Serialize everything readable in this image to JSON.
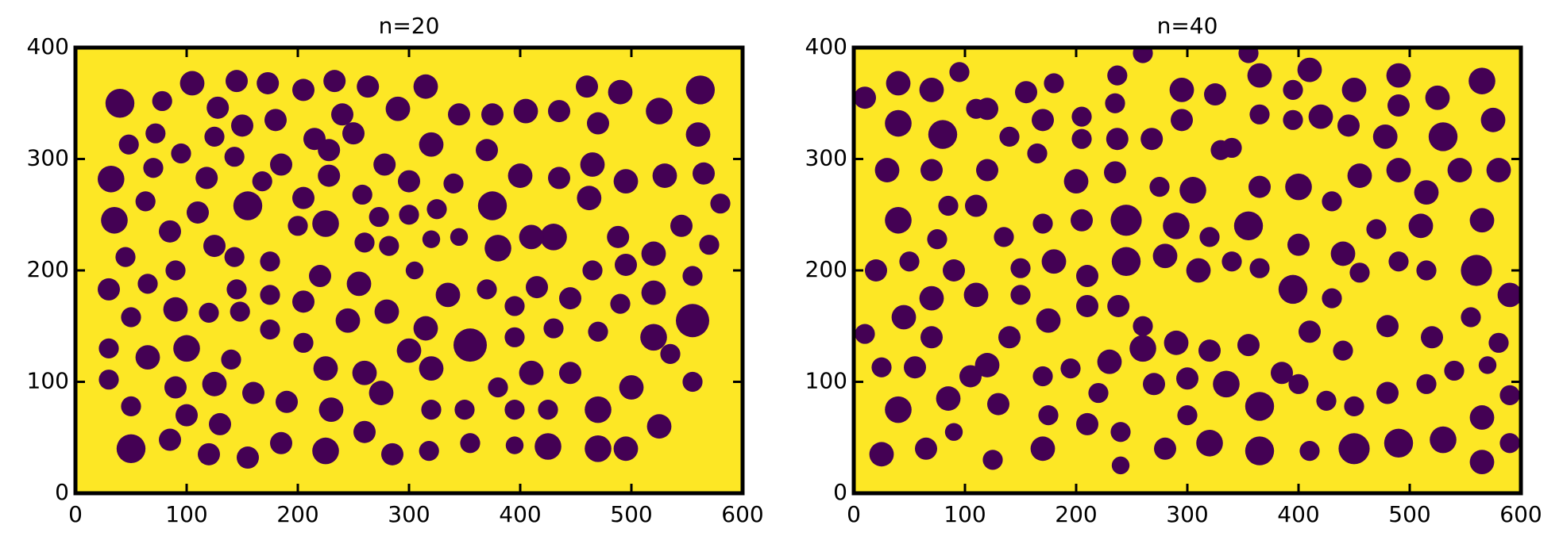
{
  "chart_data": [
    {
      "type": "scatter",
      "title": "n=20",
      "color": "#440154",
      "background": "#fde725",
      "xlim": [
        0,
        600
      ],
      "ylim": [
        0,
        400
      ],
      "xticks": [
        0,
        100,
        200,
        300,
        400,
        500,
        600
      ],
      "yticks": [
        0,
        100,
        200,
        300,
        400
      ],
      "x": [
        40,
        78,
        105,
        128,
        145,
        173,
        205,
        233,
        263,
        315,
        290,
        240,
        345,
        375,
        405,
        435,
        460,
        490,
        525,
        562,
        560,
        470,
        320,
        250,
        215,
        180,
        150,
        125,
        72,
        48,
        95,
        143,
        185,
        228,
        278,
        370,
        32,
        70,
        118,
        168,
        205,
        228,
        258,
        300,
        340,
        400,
        435,
        465,
        495,
        530,
        565,
        580,
        570,
        545,
        520,
        488,
        462,
        430,
        375,
        155,
        110,
        63,
        35,
        85,
        125,
        143,
        175,
        200,
        225,
        260,
        273,
        300,
        320,
        325,
        345,
        380,
        410,
        30,
        65,
        90,
        45,
        145,
        175,
        205,
        220,
        255,
        282,
        305,
        335,
        370,
        395,
        415,
        445,
        465,
        495,
        520,
        555,
        555,
        520,
        490,
        470,
        430,
        395,
        355,
        315,
        280,
        245,
        175,
        148,
        120,
        90,
        50,
        30,
        65,
        100,
        140,
        125,
        90,
        30,
        50,
        100,
        130,
        160,
        190,
        205,
        225,
        230,
        260,
        275,
        300,
        320,
        320,
        350,
        380,
        395,
        425,
        410,
        445,
        470,
        500,
        535,
        555,
        525,
        495,
        470,
        425,
        395,
        355,
        318,
        285,
        225,
        185,
        155,
        120,
        85,
        50,
        260
      ],
      "y": [
        350,
        352,
        368,
        346,
        370,
        368,
        362,
        370,
        365,
        365,
        345,
        340,
        340,
        340,
        343,
        343,
        365,
        360,
        343,
        362,
        322,
        332,
        313,
        323,
        318,
        335,
        330,
        320,
        323,
        313,
        305,
        302,
        295,
        308,
        295,
        308,
        282,
        292,
        283,
        280,
        265,
        285,
        268,
        280,
        278,
        285,
        283,
        295,
        280,
        285,
        287,
        260,
        223,
        240,
        215,
        230,
        265,
        230,
        258,
        258,
        252,
        262,
        245,
        235,
        222,
        212,
        208,
        240,
        242,
        225,
        248,
        250,
        228,
        255,
        230,
        220,
        230,
        183,
        188,
        200,
        212,
        183,
        178,
        172,
        195,
        188,
        222,
        200,
        178,
        183,
        168,
        185,
        175,
        200,
        205,
        180,
        195,
        155,
        140,
        170,
        145,
        148,
        140,
        133,
        148,
        163,
        155,
        147,
        163,
        162,
        165,
        158,
        130,
        122,
        130,
        120,
        98,
        95,
        102,
        78,
        70,
        62,
        90,
        82,
        135,
        112,
        75,
        108,
        90,
        128,
        112,
        75,
        75,
        95,
        75,
        75,
        108,
        108,
        75,
        95,
        125,
        100,
        60,
        40,
        40,
        42,
        43,
        45,
        38,
        35,
        38,
        45,
        32,
        35,
        48,
        40,
        55
      ],
      "sizes": [
        13,
        9,
        11,
        10,
        10,
        10,
        10,
        10,
        10,
        11,
        11,
        10,
        10,
        10,
        11,
        10,
        10,
        11,
        12,
        13,
        11,
        10,
        11,
        10,
        10,
        10,
        10,
        9,
        9,
        9,
        9,
        9,
        10,
        10,
        10,
        10,
        12,
        9,
        10,
        9,
        10,
        10,
        9,
        10,
        9,
        11,
        10,
        11,
        11,
        11,
        10,
        9,
        9,
        10,
        11,
        10,
        11,
        12,
        13,
        13,
        10,
        9,
        12,
        10,
        10,
        9,
        9,
        9,
        12,
        9,
        9,
        9,
        8,
        9,
        8,
        12,
        11,
        10,
        9,
        9,
        9,
        9,
        9,
        10,
        10,
        11,
        9,
        8,
        11,
        9,
        9,
        10,
        10,
        9,
        10,
        11,
        9,
        15,
        12,
        9,
        9,
        9,
        9,
        15,
        11,
        11,
        11,
        9,
        9,
        9,
        11,
        9,
        9,
        11,
        12,
        9,
        11,
        10,
        9,
        9,
        10,
        10,
        10,
        10,
        9,
        11,
        11,
        11,
        11,
        11,
        11,
        9,
        9,
        9,
        9,
        9,
        11,
        10,
        12,
        11,
        9,
        9,
        11,
        11,
        12,
        12,
        8,
        9,
        9,
        10,
        12,
        10,
        10,
        10,
        10,
        13,
        10
      ]
    },
    {
      "type": "scatter",
      "title": "n=40",
      "color": "#440154",
      "background": "#fde725",
      "xlim": [
        0,
        600
      ],
      "ylim": [
        0,
        400
      ],
      "xticks": [
        0,
        100,
        200,
        300,
        400,
        500,
        600
      ],
      "yticks": [
        0,
        100,
        200,
        300,
        400
      ],
      "x": [
        10,
        40,
        70,
        95,
        120,
        155,
        180,
        205,
        237,
        235,
        260,
        295,
        325,
        355,
        365,
        410,
        395,
        420,
        450,
        490,
        490,
        525,
        565,
        575,
        530,
        478,
        445,
        395,
        365,
        330,
        295,
        268,
        237,
        205,
        170,
        140,
        110,
        80,
        40,
        30,
        70,
        120,
        165,
        200,
        235,
        275,
        305,
        340,
        365,
        400,
        430,
        455,
        490,
        515,
        545,
        580,
        565,
        510,
        470,
        440,
        400,
        355,
        320,
        290,
        245,
        205,
        170,
        135,
        110,
        85,
        75,
        40,
        20,
        50,
        90,
        150,
        180,
        210,
        245,
        280,
        310,
        340,
        365,
        395,
        430,
        455,
        490,
        515,
        560,
        590,
        580,
        555,
        520,
        480,
        440,
        410,
        385,
        355,
        320,
        290,
        260,
        238,
        210,
        175,
        150,
        110,
        70,
        45,
        10,
        25,
        55,
        70,
        120,
        140,
        170,
        195,
        230,
        260,
        270,
        300,
        335,
        365,
        400,
        425,
        450,
        480,
        515,
        540,
        570,
        590,
        565,
        530,
        490,
        450,
        410,
        365,
        320,
        280,
        240,
        210,
        175,
        170,
        125,
        90,
        85,
        130,
        40,
        65,
        25,
        105,
        240,
        565,
        590,
        220,
        300
      ],
      "y": [
        355,
        368,
        362,
        378,
        345,
        360,
        368,
        338,
        375,
        350,
        395,
        362,
        358,
        395,
        375,
        380,
        362,
        338,
        362,
        375,
        348,
        355,
        370,
        335,
        320,
        320,
        330,
        335,
        340,
        308,
        335,
        318,
        318,
        318,
        335,
        320,
        345,
        322,
        332,
        290,
        290,
        290,
        305,
        280,
        288,
        275,
        272,
        310,
        275,
        275,
        262,
        285,
        290,
        270,
        290,
        290,
        245,
        240,
        237,
        215,
        223,
        240,
        230,
        240,
        245,
        245,
        242,
        230,
        258,
        258,
        228,
        245,
        200,
        208,
        200,
        202,
        208,
        195,
        208,
        213,
        200,
        208,
        202,
        183,
        175,
        198,
        208,
        200,
        200,
        178,
        135,
        158,
        140,
        150,
        128,
        145,
        108,
        133,
        128,
        135,
        150,
        168,
        168,
        155,
        178,
        178,
        175,
        158,
        143,
        113,
        113,
        140,
        115,
        140,
        105,
        112,
        118,
        130,
        98,
        103,
        98,
        78,
        98,
        83,
        78,
        90,
        98,
        110,
        115,
        88,
        68,
        48,
        45,
        40,
        38,
        38,
        45,
        40,
        55,
        62,
        70,
        40,
        30,
        55,
        85,
        80,
        75,
        40,
        35,
        105,
        25,
        28,
        45,
        90,
        70
      ],
      "sizes": [
        10,
        11,
        11,
        9,
        10,
        10,
        9,
        9,
        9,
        9,
        9,
        11,
        10,
        9,
        11,
        11,
        9,
        11,
        11,
        11,
        10,
        11,
        12,
        11,
        13,
        11,
        10,
        9,
        9,
        9,
        10,
        10,
        10,
        9,
        10,
        9,
        9,
        13,
        12,
        11,
        10,
        10,
        9,
        11,
        10,
        9,
        12,
        9,
        10,
        12,
        9,
        11,
        11,
        11,
        11,
        11,
        11,
        11,
        9,
        11,
        10,
        13,
        9,
        12,
        14,
        10,
        9,
        9,
        10,
        9,
        9,
        12,
        10,
        9,
        10,
        9,
        11,
        10,
        13,
        11,
        11,
        9,
        9,
        13,
        9,
        9,
        9,
        9,
        14,
        11,
        9,
        9,
        10,
        10,
        9,
        10,
        10,
        10,
        10,
        11,
        9,
        10,
        10,
        11,
        9,
        11,
        11,
        11,
        9,
        9,
        10,
        10,
        11,
        10,
        9,
        9,
        11,
        12,
        10,
        10,
        12,
        13,
        9,
        9,
        9,
        10,
        9,
        9,
        8,
        9,
        11,
        12,
        13,
        14,
        9,
        13,
        12,
        10,
        9,
        10,
        9,
        11,
        9,
        8,
        11,
        10,
        12,
        10,
        11,
        10,
        8,
        11,
        9,
        9,
        9
      ]
    }
  ]
}
